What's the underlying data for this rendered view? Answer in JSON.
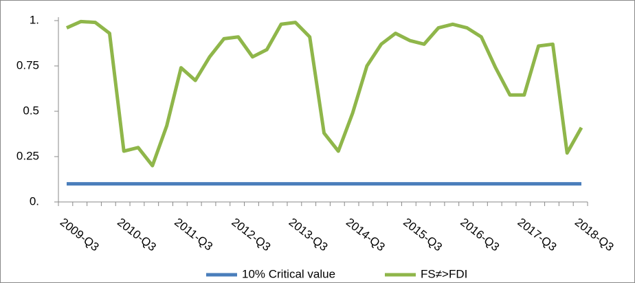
{
  "chart_data": {
    "type": "line",
    "categories": [
      "2009-Q3",
      null,
      null,
      null,
      "2010-Q3",
      null,
      null,
      null,
      "2011-Q3",
      null,
      null,
      null,
      "2012-Q3",
      null,
      null,
      null,
      "2013-Q3",
      null,
      null,
      null,
      "2014-Q3",
      null,
      null,
      null,
      "2015-Q3",
      null,
      null,
      null,
      "2016-Q3",
      null,
      null,
      null,
      "2017-Q3",
      null,
      null,
      null,
      "2018-Q3"
    ],
    "series": [
      {
        "name": "10% Critical value",
        "color": "#4a7ebb",
        "values": [
          0.1,
          0.1,
          0.1,
          0.1,
          0.1,
          0.1,
          0.1,
          0.1,
          0.1,
          0.1,
          0.1,
          0.1,
          0.1,
          0.1,
          0.1,
          0.1,
          0.1,
          0.1,
          0.1,
          0.1,
          0.1,
          0.1,
          0.1,
          0.1,
          0.1,
          0.1,
          0.1,
          0.1,
          0.1,
          0.1,
          0.1,
          0.1,
          0.1,
          0.1,
          0.1,
          0.1,
          0.1
        ]
      },
      {
        "name": "FS≠>FDI",
        "color": "#8fb64a",
        "values": [
          0.96,
          0.995,
          0.99,
          0.93,
          0.28,
          0.3,
          0.2,
          0.42,
          0.74,
          0.67,
          0.8,
          0.9,
          0.91,
          0.8,
          0.84,
          0.98,
          0.99,
          0.91,
          0.38,
          0.28,
          0.49,
          0.75,
          0.87,
          0.93,
          0.89,
          0.87,
          0.96,
          0.98,
          0.96,
          0.91,
          0.74,
          0.59,
          0.59,
          0.86,
          0.87,
          0.27,
          0.41
        ]
      }
    ],
    "ylim": [
      0,
      1
    ],
    "yticks": [
      {
        "value": 0,
        "label": "0."
      },
      0.25,
      0.5,
      0.75,
      {
        "value": 1,
        "label": "1."
      }
    ],
    "legend": "bottom"
  }
}
